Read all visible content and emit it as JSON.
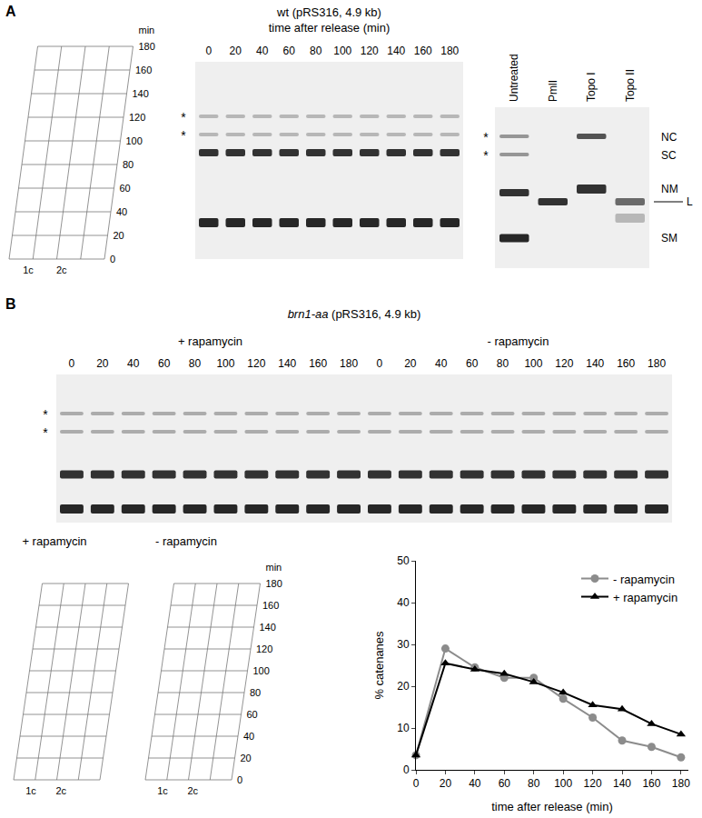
{
  "panels": {
    "A": {
      "label": "A",
      "facs": {
        "unit": "min",
        "times": [
          "0",
          "20",
          "40",
          "60",
          "80",
          "100",
          "120",
          "140",
          "160",
          "180"
        ],
        "x_labels": [
          "1c",
          "2c"
        ]
      },
      "gel": {
        "title": "wt (pRS316, 4.9 kb)",
        "subtitle": "time after release (min)",
        "lanes": [
          "0",
          "20",
          "40",
          "60",
          "80",
          "100",
          "120",
          "140",
          "160",
          "180"
        ],
        "asterisk": "*"
      },
      "control_gel": {
        "lanes": [
          "Untreated",
          "PmlI",
          "Topo I",
          "Topo II"
        ],
        "species": [
          "NC",
          "SC",
          "NM",
          "L",
          "SM"
        ],
        "asterisk": "*"
      }
    },
    "B": {
      "label": "B",
      "gel": {
        "strain": "brn1-aa",
        "title_rest": " (pRS316, 4.9 kb)",
        "groups": [
          "+ rapamycin",
          "- rapamycin"
        ],
        "lanes": [
          "0",
          "20",
          "40",
          "60",
          "80",
          "100",
          "120",
          "140",
          "160",
          "180",
          "0",
          "20",
          "40",
          "60",
          "80",
          "100",
          "120",
          "140",
          "160",
          "180"
        ],
        "asterisk": "*"
      },
      "facs": {
        "titles": [
          "+ rapamycin",
          "- rapamycin"
        ],
        "unit": "min",
        "times": [
          "0",
          "20",
          "40",
          "60",
          "80",
          "100",
          "120",
          "140",
          "160",
          "180"
        ],
        "x_labels": [
          "1c",
          "2c"
        ]
      }
    }
  },
  "chart_data": {
    "type": "line",
    "xlabel": "time after release (min)",
    "ylabel": "% catenanes",
    "x": [
      0,
      20,
      40,
      60,
      80,
      100,
      120,
      140,
      160,
      180
    ],
    "series": [
      {
        "name": "- rapamycin",
        "color": "#8c8c8c",
        "marker": "circle",
        "values": [
          3.5,
          29,
          24.5,
          22,
          22,
          17,
          12.5,
          7,
          5.5,
          3
        ]
      },
      {
        "name": "+ rapamycin",
        "color": "#000000",
        "marker": "triangle-up",
        "values": [
          3.5,
          25.5,
          24,
          23,
          21,
          18.5,
          15.5,
          14.5,
          11,
          8.5
        ]
      }
    ],
    "xlim": [
      0,
      185
    ],
    "xticks": [
      0,
      20,
      40,
      60,
      80,
      100,
      120,
      140,
      160,
      180
    ],
    "ylim": [
      0,
      50
    ],
    "yticks": [
      0,
      10,
      20,
      30,
      40,
      50
    ],
    "legend": "top-right",
    "grid": false
  }
}
